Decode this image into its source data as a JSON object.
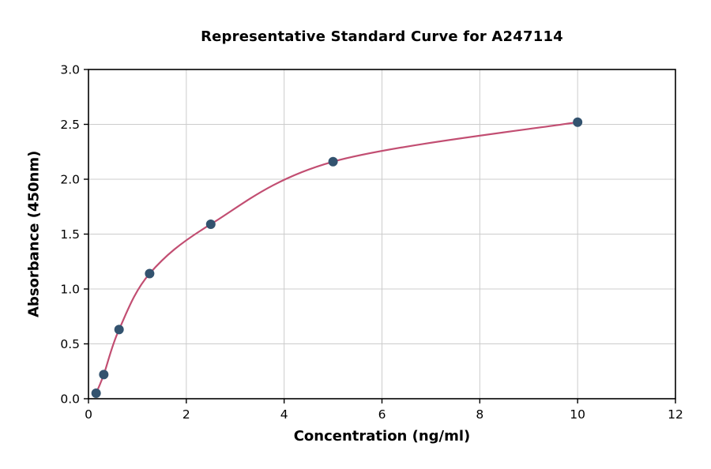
{
  "chart_data": {
    "type": "scatter",
    "title": "Representative Standard Curve for A247114",
    "xlabel": "Concentration (ng/ml)",
    "ylabel": "Absorbance (450nm)",
    "xlim": [
      0,
      12
    ],
    "ylim": [
      0,
      3
    ],
    "grid": true,
    "legend": "none",
    "x_ticks": [
      {
        "value": 0,
        "label": "0"
      },
      {
        "value": 2,
        "label": "2"
      },
      {
        "value": 4,
        "label": "4"
      },
      {
        "value": 6,
        "label": "6"
      },
      {
        "value": 8,
        "label": "8"
      },
      {
        "value": 10,
        "label": "10"
      },
      {
        "value": 12,
        "label": "12"
      }
    ],
    "y_ticks": [
      {
        "value": 0.0,
        "label": "0.0"
      },
      {
        "value": 0.5,
        "label": "0.5"
      },
      {
        "value": 1.0,
        "label": "1.0"
      },
      {
        "value": 1.5,
        "label": "1.5"
      },
      {
        "value": 2.0,
        "label": "2.0"
      },
      {
        "value": 2.5,
        "label": "2.5"
      },
      {
        "value": 3.0,
        "label": "3.0"
      }
    ],
    "points": [
      {
        "x": 0.156,
        "y": 0.05
      },
      {
        "x": 0.3125,
        "y": 0.22
      },
      {
        "x": 0.625,
        "y": 0.63
      },
      {
        "x": 1.25,
        "y": 1.14
      },
      {
        "x": 2.5,
        "y": 1.59
      },
      {
        "x": 5.0,
        "y": 2.16
      },
      {
        "x": 10.0,
        "y": 2.52
      }
    ],
    "colors": {
      "curve": "#c24e72",
      "point": "#33536f",
      "grid": "#cccccc",
      "axis": "#000000",
      "background": "#ffffff",
      "tick_label": "#000000"
    }
  }
}
